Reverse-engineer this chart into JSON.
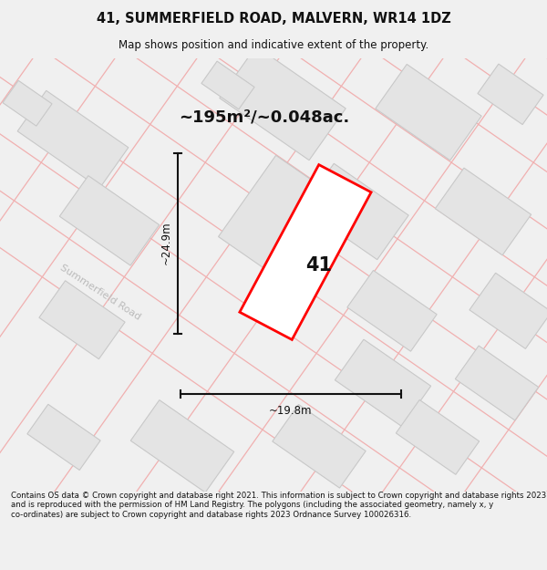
{
  "title_line1": "41, SUMMERFIELD ROAD, MALVERN, WR14 1DZ",
  "title_line2": "Map shows position and indicative extent of the property.",
  "area_text": "~195m²/~0.048ac.",
  "label_41": "41",
  "dim_height": "~24.9m",
  "dim_width": "~19.8m",
  "road_label": "Summerfield Road",
  "footer": "Contains OS data © Crown copyright and database right 2021. This information is subject to Crown copyright and database rights 2023 and is reproduced with the permission of HM Land Registry. The polygons (including the associated geometry, namely x, y co-ordinates) are subject to Crown copyright and database rights 2023 Ordnance Survey 100026316.",
  "bg_color": "#f0f0f0",
  "map_bg": "#f8f8f8",
  "building_fill": "#e4e4e4",
  "building_edge": "#c8c8c8",
  "plot_fill": "#ffffff",
  "plot_edge": "#ff0000",
  "pink_line": "#f0b0b0",
  "dim_color": "#111111",
  "text_color": "#111111",
  "road_text_color": "#bbbbbb"
}
